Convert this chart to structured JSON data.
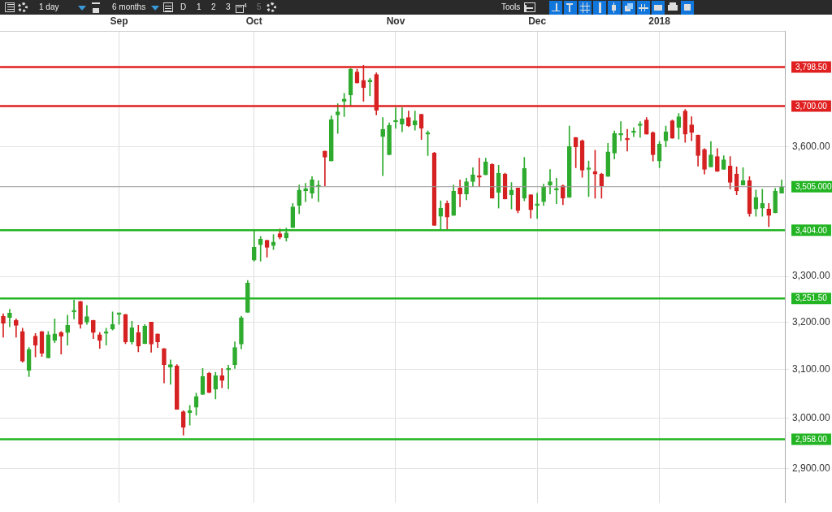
{
  "chart_data": {
    "type": "candlestick",
    "categories": [
      null,
      null,
      null,
      null,
      null,
      null,
      null,
      null,
      null,
      null,
      null,
      null,
      null,
      null,
      null,
      null,
      null,
      null,
      "Sep",
      null,
      null,
      null,
      null,
      null,
      null,
      null,
      null,
      null,
      null,
      null,
      null,
      null,
      null,
      null,
      null,
      null,
      null,
      null,
      null,
      "Oct",
      null,
      null,
      null,
      null,
      null,
      null,
      null,
      null,
      null,
      null,
      null,
      null,
      null,
      null,
      null,
      null,
      null,
      null,
      null,
      null,
      null,
      "Nov",
      null,
      null,
      null,
      null,
      null,
      null,
      null,
      null,
      null,
      null,
      null,
      null,
      null,
      null,
      null,
      null,
      null,
      null,
      null,
      null,
      null,
      "Dec",
      null,
      null,
      null,
      null,
      null,
      null,
      null,
      null,
      null,
      null,
      null,
      null,
      null,
      null,
      null,
      null,
      null,
      null,
      "2018",
      null,
      null,
      null,
      null,
      null,
      null,
      null,
      null,
      null,
      null,
      null,
      null,
      null,
      null,
      null,
      null,
      null,
      null,
      null
    ],
    "ohlc": [
      [
        3213,
        3218,
        3168,
        3198
      ],
      [
        3210,
        3228,
        3190,
        3220
      ],
      [
        3204,
        3207,
        3168,
        3193
      ],
      [
        3180,
        3187,
        3115,
        3117
      ],
      [
        3098,
        3146,
        3085,
        3142
      ],
      [
        3170,
        3176,
        3126,
        3151
      ],
      [
        3180,
        3180,
        3127,
        3134
      ],
      [
        3124,
        3180,
        3124,
        3173
      ],
      [
        3161,
        3207,
        3156,
        3175
      ],
      [
        3178,
        3180,
        3132,
        3170
      ],
      [
        3178,
        3215,
        3151,
        3193
      ],
      [
        3222,
        3248,
        3207,
        3224
      ],
      [
        3245,
        3245,
        3187,
        3195
      ],
      [
        3200,
        3236,
        3195,
        3212
      ],
      [
        3204,
        3204,
        3165,
        3178
      ],
      [
        3173,
        3178,
        3144,
        3161
      ],
      [
        3176,
        3187,
        3151,
        3178
      ],
      [
        3185,
        3222,
        3183,
        3195
      ],
      [
        3217,
        3220,
        3195,
        3219
      ],
      [
        3217,
        3217,
        3154,
        3158
      ],
      [
        3158,
        3202,
        3153,
        3188
      ],
      [
        3178,
        3193,
        3137,
        3149
      ],
      [
        3154,
        3195,
        3154,
        3192
      ],
      [
        3200,
        3200,
        3136,
        3153
      ],
      [
        3175,
        3175,
        3146,
        3158
      ],
      [
        3144,
        3144,
        3072,
        3110
      ],
      [
        3105,
        3120,
        3069,
        3110
      ],
      [
        3107,
        3110,
        3018,
        3018
      ],
      [
        3013,
        3015,
        2966,
        2982
      ],
      [
        3011,
        3026,
        2986,
        3015
      ],
      [
        3022,
        3051,
        3006,
        3044
      ],
      [
        3048,
        3102,
        3048,
        3085
      ],
      [
        3092,
        3094,
        3052,
        3052
      ],
      [
        3059,
        3094,
        3039,
        3087
      ],
      [
        3087,
        3102,
        3062,
        3077
      ],
      [
        3099,
        3109,
        3060,
        3102
      ],
      [
        3110,
        3158,
        3102,
        3146
      ],
      [
        3153,
        3213,
        3143,
        3210
      ],
      [
        3221,
        3291,
        3221,
        3285
      ],
      [
        3336,
        3404,
        3334,
        3365
      ],
      [
        3371,
        3390,
        3334,
        3384
      ],
      [
        3381,
        3381,
        3343,
        3365
      ],
      [
        3369,
        3394,
        3360,
        3377
      ],
      [
        3396,
        3407,
        3384,
        3388
      ],
      [
        3386,
        3409,
        3379,
        3398
      ],
      [
        3410,
        3466,
        3410,
        3458
      ],
      [
        3461,
        3509,
        3442,
        3497
      ],
      [
        3495,
        3513,
        3470,
        3500
      ],
      [
        3490,
        3529,
        3478,
        3521
      ],
      [
        3505,
        3519,
        3470,
        3507
      ],
      [
        3590,
        3590,
        3507,
        3575
      ],
      [
        3566,
        3676,
        3566,
        3667
      ],
      [
        3678,
        3706,
        3633,
        3686
      ],
      [
        3712,
        3732,
        3674,
        3718
      ],
      [
        3728,
        3795,
        3700,
        3793
      ],
      [
        3786,
        3793,
        3758,
        3758
      ],
      [
        3765,
        3803,
        3712,
        3746
      ],
      [
        3761,
        3770,
        3726,
        3764
      ],
      [
        3780,
        3784,
        3678,
        3690
      ],
      [
        3625,
        3672,
        3531,
        3643
      ],
      [
        3581,
        3659,
        3581,
        3653
      ],
      [
        3661,
        3696,
        3645,
        3664
      ],
      [
        3655,
        3696,
        3637,
        3669
      ],
      [
        3672,
        3688,
        3649,
        3651
      ],
      [
        3653,
        3688,
        3641,
        3664
      ],
      [
        3680,
        3680,
        3618,
        3645
      ],
      [
        3631,
        3639,
        3579,
        3635
      ],
      [
        3585,
        3587,
        3415,
        3415
      ],
      [
        3436,
        3472,
        3404,
        3455
      ],
      [
        3466,
        3472,
        3404,
        3434
      ],
      [
        3438,
        3509,
        3438,
        3495
      ],
      [
        3502,
        3521,
        3458,
        3488
      ],
      [
        3488,
        3525,
        3474,
        3517
      ],
      [
        3517,
        3550,
        3505,
        3533
      ],
      [
        3529,
        3573,
        3505,
        3527
      ],
      [
        3533,
        3573,
        3533,
        3564
      ],
      [
        3558,
        3560,
        3478,
        3478
      ],
      [
        3492,
        3556,
        3455,
        3537
      ],
      [
        3535,
        3537,
        3476,
        3476
      ],
      [
        3486,
        3515,
        3453,
        3497
      ],
      [
        3502,
        3502,
        3444,
        3449
      ],
      [
        3478,
        3575,
        3472,
        3548
      ],
      [
        3486,
        3486,
        3432,
        3451
      ],
      [
        3461,
        3490,
        3431,
        3464
      ],
      [
        3470,
        3511,
        3461,
        3505
      ],
      [
        3509,
        3546,
        3488,
        3517
      ],
      [
        3497,
        3525,
        3465,
        3499
      ],
      [
        3507,
        3509,
        3463,
        3478
      ],
      [
        3480,
        3651,
        3480,
        3601
      ],
      [
        3623,
        3623,
        3550,
        3600
      ],
      [
        3615,
        3617,
        3527,
        3544
      ],
      [
        3546,
        3566,
        3482,
        3548
      ],
      [
        3541,
        3592,
        3478,
        3535
      ],
      [
        3535,
        3537,
        3478,
        3507
      ],
      [
        3529,
        3609,
        3529,
        3588
      ],
      [
        3585,
        3639,
        3571,
        3633
      ],
      [
        3629,
        3662,
        3615,
        3631
      ],
      [
        3619,
        3643,
        3590,
        3617
      ],
      [
        3635,
        3647,
        3625,
        3637
      ],
      [
        3652,
        3662,
        3623,
        3654
      ],
      [
        3666,
        3672,
        3631,
        3631
      ],
      [
        3635,
        3637,
        3566,
        3581
      ],
      [
        3566,
        3613,
        3550,
        3607
      ],
      [
        3615,
        3651,
        3600,
        3637
      ],
      [
        3664,
        3666,
        3621,
        3621
      ],
      [
        3647,
        3682,
        3619,
        3674
      ],
      [
        3688,
        3692,
        3611,
        3631
      ],
      [
        3654,
        3674,
        3615,
        3635
      ],
      [
        3629,
        3629,
        3554,
        3579
      ],
      [
        3594,
        3596,
        3535,
        3546
      ],
      [
        3552,
        3613,
        3552,
        3581
      ],
      [
        3577,
        3596,
        3541,
        3541
      ],
      [
        3546,
        3579,
        3546,
        3569
      ],
      [
        3554,
        3577,
        3500,
        3515
      ],
      [
        3535,
        3552,
        3486,
        3495
      ],
      [
        3509,
        3550,
        3509,
        3519
      ],
      [
        3519,
        3529,
        3436,
        3442
      ],
      [
        3453,
        3497,
        3436,
        3480
      ],
      [
        3455,
        3499,
        3436,
        3466
      ],
      [
        3453,
        3466,
        3412,
        3438
      ],
      [
        3444,
        3501,
        3444,
        3495
      ],
      [
        3490,
        3521,
        3490,
        3505
      ]
    ],
    "colors": [
      "#d52121",
      "#2eab2e",
      "#d52121",
      "#d52121",
      "#2eab2e",
      "#d52121",
      "#d52121",
      "#2eab2e",
      "#2eab2e",
      "#d52121",
      "#2eab2e",
      "#2eab2e",
      "#d52121",
      "#2eab2e",
      "#d52121",
      "#d52121",
      "#2eab2e",
      "#2eab2e",
      "#2eab2e",
      "#d52121",
      "#2eab2e",
      "#d52121",
      "#2eab2e",
      "#d52121",
      "#d52121",
      "#d52121",
      "#2eab2e",
      "#d52121",
      "#d52121",
      "#2eab2e",
      "#2eab2e",
      "#2eab2e",
      "#d52121",
      "#2eab2e",
      "#d52121",
      "#2eab2e",
      "#2eab2e",
      "#2eab2e",
      "#2eab2e",
      "#2eab2e",
      "#2eab2e",
      "#d52121",
      "#2eab2e",
      "#d52121",
      "#2eab2e",
      "#2eab2e",
      "#2eab2e",
      "#2eab2e",
      "#2eab2e",
      "#2eab2e",
      "#d52121",
      "#2eab2e",
      "#2eab2e",
      "#2eab2e",
      "#2eab2e",
      "#d52121",
      "#d52121",
      "#2eab2e",
      "#d52121",
      "#2eab2e",
      "#2eab2e",
      "#2eab2e",
      "#2eab2e",
      "#d52121",
      "#2eab2e",
      "#d52121",
      "#2eab2e",
      "#d52121",
      "#2eab2e",
      "#d52121",
      "#2eab2e",
      "#d52121",
      "#2eab2e",
      "#2eab2e",
      "#d52121",
      "#2eab2e",
      "#d52121",
      "#2eab2e",
      "#d52121",
      "#2eab2e",
      "#d52121",
      "#2eab2e",
      "#d52121",
      "#2eab2e",
      "#2eab2e",
      "#2eab2e",
      "#2eab2e",
      "#d52121",
      "#2eab2e",
      "#d52121",
      "#d52121",
      "#2eab2e",
      "#d52121",
      "#d52121",
      "#2eab2e",
      "#2eab2e",
      "#2eab2e",
      "#d52121",
      "#2eab2e",
      "#2eab2e",
      "#d52121",
      "#d52121",
      "#2eab2e",
      "#2eab2e",
      "#d52121",
      "#2eab2e",
      "#d52121",
      "#d52121",
      "#d52121",
      "#d52121",
      "#2eab2e",
      "#d52121",
      "#2eab2e",
      "#d52121",
      "#d52121",
      "#2eab2e",
      "#d52121",
      "#2eab2e",
      "#2eab2e",
      "#d52121",
      "#2eab2e",
      "#2eab2e"
    ],
    "ylim": [
      2834,
      3892
    ],
    "yticks": [
      {
        "value": 2900,
        "label": "2,900.00"
      },
      {
        "value": 3000,
        "label": "3,000.00"
      },
      {
        "value": 3100,
        "label": "3,100.00"
      },
      {
        "value": 3200,
        "label": "3,200.00"
      },
      {
        "value": 3300,
        "label": "3,300.00"
      },
      {
        "value": 3600,
        "label": "3,600.00"
      }
    ],
    "log": true,
    "grid": true,
    "ref_lines": [
      {
        "axis": "y",
        "value": 3798.5,
        "label": "3,798.50",
        "color": "#e02020"
      },
      {
        "axis": "y",
        "value": 3700,
        "label": "3,700.00",
        "color": "#e02020"
      },
      {
        "axis": "y",
        "value": 3505,
        "label": "3,505.000",
        "color": "#999999"
      },
      {
        "axis": "y",
        "value": 3404,
        "label": "3,404.00",
        "color": "#22b422"
      },
      {
        "axis": "y",
        "value": 3251.5,
        "label": "3,251.50",
        "color": "#22b422"
      },
      {
        "axis": "y",
        "value": 2958,
        "label": "2,958.00",
        "color": "#22b422"
      }
    ],
    "annotations": [
      "1 day",
      "6 months",
      "D",
      "1",
      "2",
      "3",
      "4",
      "5",
      "Tools"
    ]
  }
}
